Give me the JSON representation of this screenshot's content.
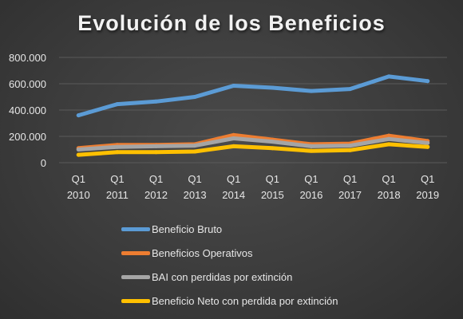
{
  "colors": {
    "beneficio_bruto": "#5b9bd5",
    "beneficios_operativos": "#ed7d31",
    "bai": "#a5a5a5",
    "beneficio_neto": "#ffc000",
    "text": "#e6e6e6",
    "grid": "#5a5a5a"
  },
  "chart_data": {
    "type": "line",
    "title": "Evolución de los Beneficios",
    "xlabel": "",
    "ylabel": "",
    "ylim": [
      0,
      800000
    ],
    "y_ticks": [
      0,
      200000,
      400000,
      600000,
      800000
    ],
    "y_tick_labels": [
      "0",
      "200.000",
      "400.000",
      "600.000",
      "800.000"
    ],
    "categories": [
      [
        "Q1",
        "2010"
      ],
      [
        "Q1",
        "2011"
      ],
      [
        "Q1",
        "2012"
      ],
      [
        "Q1",
        "2013"
      ],
      [
        "Q1",
        "2014"
      ],
      [
        "Q1",
        "2015"
      ],
      [
        "Q1",
        "2016"
      ],
      [
        "Q1",
        "2017"
      ],
      [
        "Q1",
        "2018"
      ],
      [
        "Q1",
        "2019"
      ]
    ],
    "grid": true,
    "legend_position": "bottom",
    "series": [
      {
        "name": "Beneficio Bruto",
        "color_key": "beneficio_bruto",
        "values": [
          360000,
          445000,
          465000,
          500000,
          585000,
          570000,
          545000,
          560000,
          655000,
          620000
        ]
      },
      {
        "name": "Beneficios Operativos",
        "color_key": "beneficios_operativos",
        "values": [
          110000,
          135000,
          135000,
          140000,
          210000,
          175000,
          140000,
          145000,
          205000,
          165000
        ]
      },
      {
        "name": "BAI con perdidas por extinción",
        "color_key": "bai",
        "values": [
          100000,
          120000,
          125000,
          130000,
          185000,
          160000,
          125000,
          130000,
          180000,
          150000
        ]
      },
      {
        "name": "Beneficio Neto con perdida por extinción",
        "color_key": "beneficio_neto",
        "values": [
          60000,
          80000,
          80000,
          85000,
          125000,
          110000,
          90000,
          95000,
          140000,
          120000
        ]
      }
    ]
  }
}
